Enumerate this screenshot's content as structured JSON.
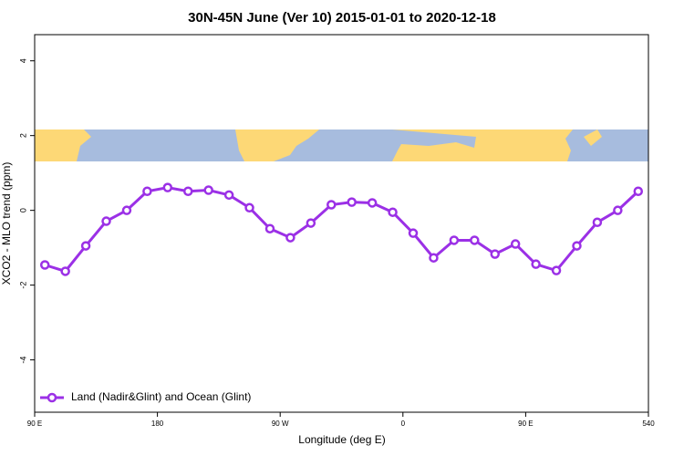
{
  "chart_data": {
    "type": "line",
    "title": "30N-45N June (Ver 10)   2015-01-01 to 2020-12-18",
    "xlabel": "Longitude (deg E)",
    "ylabel": "XCO2 - MLO trend (ppm)",
    "x": [
      97.5,
      112.5,
      127.5,
      142.5,
      157.5,
      172.5,
      187.5,
      202.5,
      217.5,
      232.5,
      247.5,
      262.5,
      277.5,
      292.5,
      307.5,
      322.5,
      337.5,
      352.5,
      367.5,
      382.5,
      397.5,
      412.5,
      427.5,
      442.5,
      457.5,
      472.5,
      487.5,
      502.5,
      517.5,
      532.5
    ],
    "series": [
      {
        "name": "Land (Nadir&Glint) and Ocean (Glint)",
        "color": "#9b30e6",
        "values": [
          -1.46,
          -1.63,
          -0.95,
          -0.29,
          0.0,
          0.51,
          0.61,
          0.51,
          0.54,
          0.41,
          0.07,
          -0.49,
          -0.73,
          -0.34,
          0.15,
          0.22,
          0.2,
          -0.05,
          -0.61,
          -1.27,
          -0.8,
          -0.8,
          -1.17,
          -0.9,
          -1.44,
          -1.61,
          -0.95,
          -0.32,
          0.0,
          0.51
        ]
      }
    ],
    "xlim": [
      90,
      540
    ],
    "xticks": [
      {
        "value": 90,
        "label": "90 E"
      },
      180,
      {
        "value": 270,
        "label": "90 W"
      },
      {
        "value": 360,
        "label": "0"
      },
      {
        "value": 450,
        "label": "90 E"
      },
      540
    ],
    "ylim": [
      -5.4,
      4.7
    ],
    "yticks": [
      -4,
      -2,
      0,
      2,
      4
    ],
    "legend": "bottom-left"
  }
}
